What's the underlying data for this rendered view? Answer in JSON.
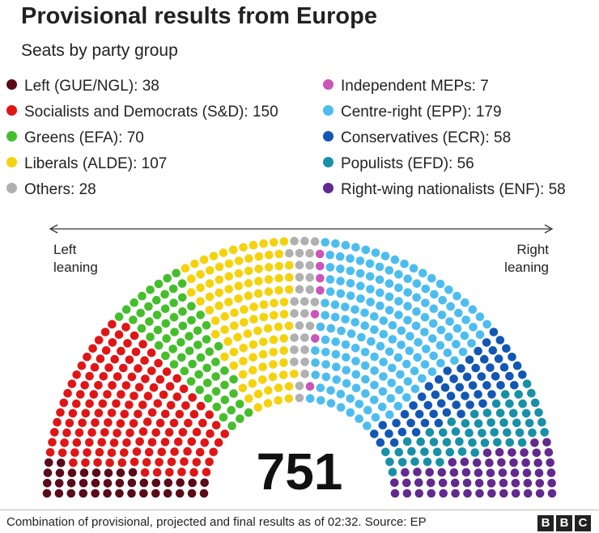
{
  "title": "Provisional results from Europe",
  "subtitle": "Seats by party group",
  "footer": {
    "note": "Combination of provisional, projected and final results as of 02:32. Source: EP",
    "logo_letters": [
      "B",
      "B",
      "C"
    ]
  },
  "chart_data": {
    "type": "parliament",
    "title": "Provisional results from Europe",
    "subtitle": "Seats by party group",
    "total_label": "751",
    "total": 751,
    "rows": 14,
    "axis": {
      "left_label": "Left leaning",
      "right_label": "Right leaning"
    },
    "order": [
      "gue",
      "sd",
      "efa",
      "alde",
      "others",
      "ind",
      "epp",
      "ecr",
      "efd",
      "enf"
    ],
    "groups": [
      {
        "id": "gue",
        "name": "Left (GUE/NGL)",
        "seats": 38,
        "color": "#5a0b1a"
      },
      {
        "id": "sd",
        "name": "Socialists and Democrats (S&D)",
        "seats": 150,
        "color": "#e01616"
      },
      {
        "id": "efa",
        "name": "Greens (EFA)",
        "seats": 70,
        "color": "#45be2c"
      },
      {
        "id": "alde",
        "name": "Liberals (ALDE)",
        "seats": 107,
        "color": "#f5d20e"
      },
      {
        "id": "others",
        "name": "Others",
        "seats": 28,
        "color": "#b0b0b0"
      },
      {
        "id": "ind",
        "name": "Independent MEPs",
        "seats": 7,
        "color": "#cc55b9"
      },
      {
        "id": "epp",
        "name": "Centre-right (EPP)",
        "seats": 179,
        "color": "#4dbdf0"
      },
      {
        "id": "ecr",
        "name": "Conservatives (ECR)",
        "seats": 58,
        "color": "#1357b5"
      },
      {
        "id": "efd",
        "name": "Populists (EFD)",
        "seats": 56,
        "color": "#1890a8"
      },
      {
        "id": "enf",
        "name": "Right-wing nationalists (ENF)",
        "seats": 58,
        "color": "#622a8e"
      }
    ],
    "legend_columns": [
      [
        "gue",
        "sd",
        "efa",
        "alde",
        "others"
      ],
      [
        "ind",
        "epp",
        "ecr",
        "efd",
        "enf"
      ]
    ]
  }
}
